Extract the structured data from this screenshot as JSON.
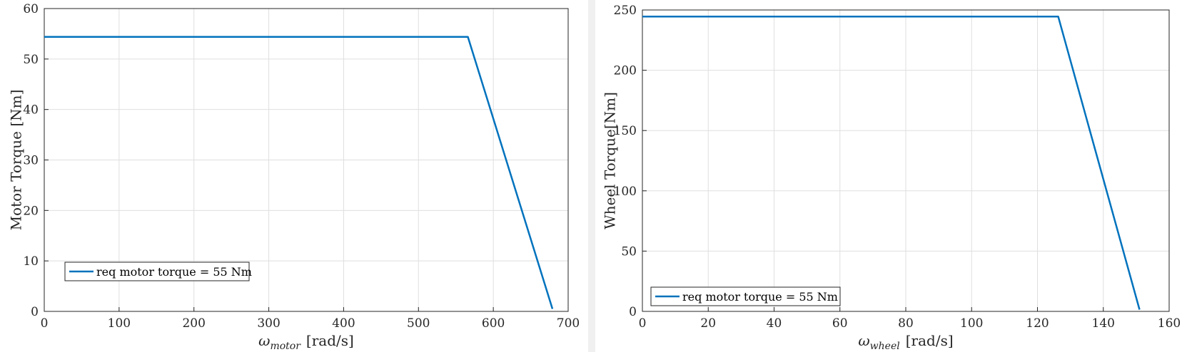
{
  "colors": {
    "line": "#0072BD",
    "grid": "#dfdfdf",
    "axis": "#262626",
    "background": "#f0f0f0"
  },
  "chart_data": [
    {
      "type": "line",
      "title": "",
      "xlabel": "rad/s",
      "xlabel_symbol": "ω",
      "xlabel_subscript": "motor",
      "xlabel_units": "[rad/s]",
      "ylabel": "Motor Torque [Nm]",
      "xlim": [
        0,
        700
      ],
      "ylim": [
        0,
        60
      ],
      "xticks": [
        0,
        100,
        200,
        300,
        400,
        500,
        600,
        700
      ],
      "yticks": [
        0,
        10,
        20,
        30,
        40,
        50,
        60
      ],
      "grid": true,
      "legend_position": "bottom-left",
      "series": [
        {
          "name": "req motor torque = 55 Nm",
          "x": [
            0,
            566,
            679
          ],
          "y": [
            54.4,
            54.4,
            0.5
          ]
        }
      ]
    },
    {
      "type": "line",
      "title": "",
      "xlabel": "rad/s",
      "xlabel_symbol": "ω",
      "xlabel_subscript": "wheel",
      "xlabel_units": "[rad/s]",
      "ylabel": "Wheel Torque[Nm]",
      "xlim": [
        0,
        160
      ],
      "ylim": [
        0,
        250
      ],
      "xticks": [
        0,
        20,
        40,
        60,
        80,
        100,
        120,
        140,
        160
      ],
      "yticks": [
        0,
        50,
        100,
        150,
        200,
        250
      ],
      "grid": true,
      "legend_position": "bottom-left",
      "series": [
        {
          "name": "req motor torque = 55 Nm",
          "x": [
            0,
            126.3,
            151
          ],
          "y": [
            244.5,
            244.5,
            1.5
          ]
        }
      ]
    }
  ]
}
